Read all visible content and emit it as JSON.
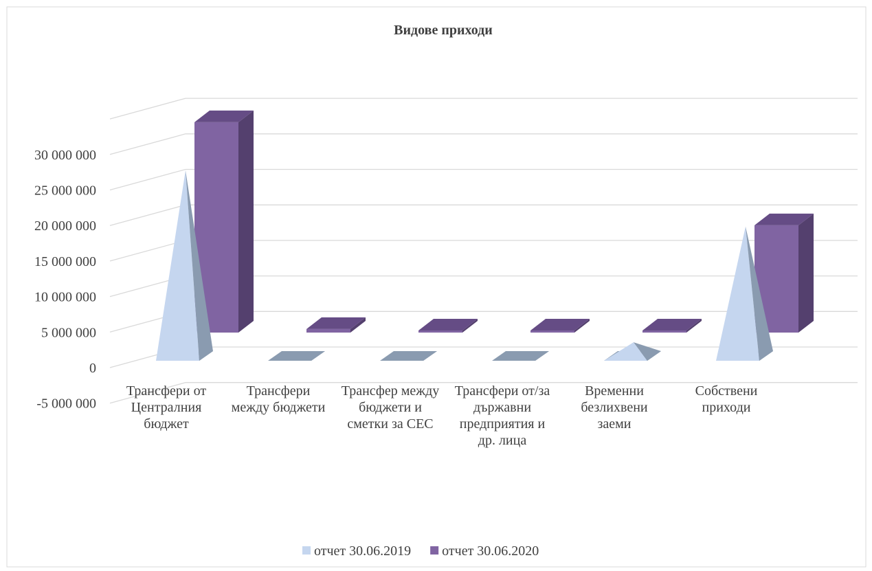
{
  "chart_data": {
    "type": "bar3d",
    "title": "Видове приходи",
    "categories": [
      "Трансфери от Централния бюджет",
      "Трансфери между бюджети",
      "Трансфер между бюджети и сметки за СЕС",
      "Трансфери от/за държавни предприятия и др. лица",
      "Временни безлихвени заеми",
      "Собствени приходи"
    ],
    "series": [
      {
        "name": "отчет 30.06.2019",
        "color": "#c5d6ef",
        "shape": "pyramid",
        "values": [
          26800000,
          0,
          0,
          0,
          2600000,
          18900000
        ]
      },
      {
        "name": "отчет 30.06.2020",
        "color": "#8064a2",
        "shape": "box",
        "values": [
          29600000,
          500000,
          0,
          0,
          0,
          15100000
        ]
      }
    ],
    "ylim": [
      -5000000,
      35000000
    ],
    "yticks": [
      {
        "value": -5000000,
        "label": "-5 000 000"
      },
      0,
      {
        "value": 5000000,
        "label": "5 000 000"
      },
      {
        "value": 10000000,
        "label": "10 000 000"
      },
      {
        "value": 15000000,
        "label": "15 000 000"
      },
      {
        "value": 20000000,
        "label": "20 000 000"
      },
      {
        "value": 25000000,
        "label": "25 000 000"
      },
      {
        "value": 30000000,
        "label": "30 000 000"
      }
    ],
    "grid": true,
    "legend": "bottom"
  }
}
